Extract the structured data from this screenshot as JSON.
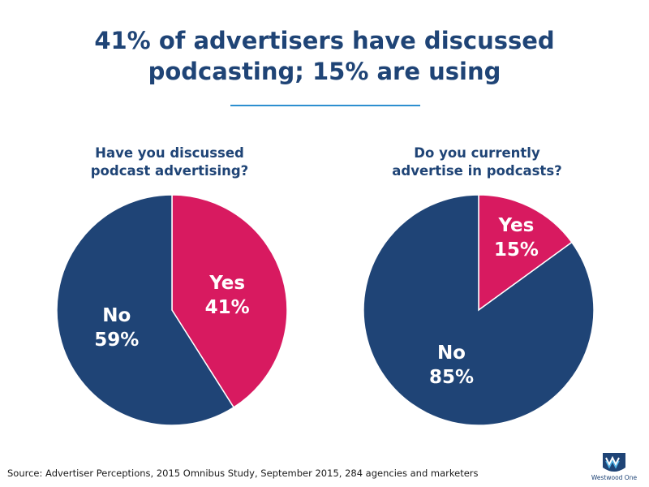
{
  "title": "41% of advertisers have discussed podcasting; 15% are using",
  "title_lines": [
    "41% of advertisers have discussed",
    "podcasting; 15% are using"
  ],
  "colors": {
    "navy": "#1f4476",
    "yes": "#d81a60",
    "rule": "#2c8fd0"
  },
  "chart_data": [
    {
      "type": "pie",
      "title": "Have you discussed podcast advertising?",
      "title_lines": [
        "Have you discussed",
        "podcast advertising?"
      ],
      "slices": [
        {
          "label": "Yes",
          "value": 41,
          "display": "41%",
          "color": "#d81a60"
        },
        {
          "label": "No",
          "value": 59,
          "display": "59%",
          "color": "#1f4476"
        }
      ]
    },
    {
      "type": "pie",
      "title": "Do you currently advertise in podcasts?",
      "title_lines": [
        "Do you currently",
        "advertise in podcasts?"
      ],
      "slices": [
        {
          "label": "Yes",
          "value": 15,
          "display": "15%",
          "color": "#d81a60"
        },
        {
          "label": "No",
          "value": 85,
          "display": "85%",
          "color": "#1f4476"
        }
      ]
    }
  ],
  "source": "Source: Advertiser Perceptions, 2015 Omnibus Study, September 2015, 284 agencies and marketers",
  "logo": {
    "icon": "westwood-one-logo",
    "text": "Westwood One"
  }
}
